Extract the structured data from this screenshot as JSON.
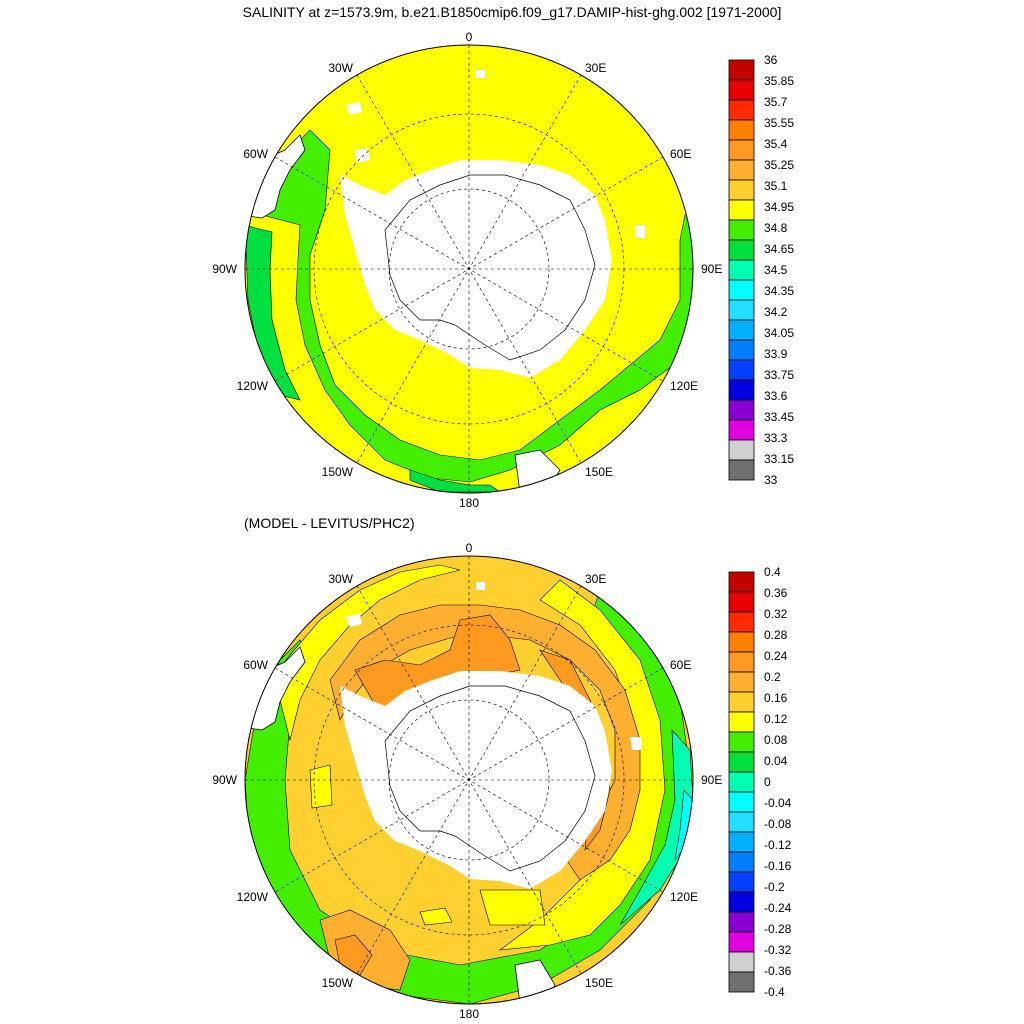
{
  "top_title": "SALINITY at z=1573.9m, b.e21.B1850cmip6.f09_g17.DAMIP-hist-ghg.002 [1971-2000]",
  "bottom_title": "(MODEL - LEVITUS/PHC2)",
  "longitude_labels": {
    "top": "0",
    "bottom": "180",
    "left": "90W",
    "right": "90E",
    "ul1": "30W",
    "ul2": "60W",
    "ur1": "30E",
    "ur2": "60E",
    "ll1": "120W",
    "ll2": "150W",
    "lr1": "120E",
    "lr2": "150E"
  },
  "colors": {
    "land": "#ffffff",
    "coast": "#000000",
    "grid": "#000000"
  },
  "maps": [
    {
      "name": "salinity",
      "colorbar": {
        "labels": [
          "36",
          "35.85",
          "35.7",
          "35.55",
          "35.4",
          "35.25",
          "35.1",
          "34.95",
          "34.8",
          "34.65",
          "34.5",
          "34.35",
          "34.2",
          "34.05",
          "33.9",
          "33.75",
          "33.6",
          "33.45",
          "33.3",
          "33.15",
          "33"
        ],
        "colors": [
          "#c40000",
          "#e80000",
          "#ff2a00",
          "#ff8000",
          "#ff9a20",
          "#ffb030",
          "#ffd030",
          "#ffff00",
          "#44ee00",
          "#00e040",
          "#00ffb0",
          "#00ffff",
          "#20dfff",
          "#00b0ff",
          "#0080ff",
          "#0040ff",
          "#0000e0",
          "#8800d0",
          "#e000e0",
          "#d0d0d0",
          "#707070"
        ]
      }
    },
    {
      "name": "difference",
      "colorbar": {
        "labels": [
          "0.4",
          "0.36",
          "0.32",
          "0.28",
          "0.24",
          "0.2",
          "0.16",
          "0.12",
          "0.08",
          "0.04",
          "0",
          "-0.04",
          "-0.08",
          "-0.12",
          "-0.16",
          "-0.2",
          "-0.24",
          "-0.28",
          "-0.32",
          "-0.36",
          "-0.4"
        ],
        "colors": [
          "#c40000",
          "#e80000",
          "#ff2a00",
          "#ff8000",
          "#ff9a20",
          "#ffb030",
          "#ffd030",
          "#ffff00",
          "#44ee00",
          "#00e040",
          "#00ffb0",
          "#00ffff",
          "#20dfff",
          "#00b0ff",
          "#0080ff",
          "#0040ff",
          "#0000e0",
          "#8800d0",
          "#e000e0",
          "#d0d0d0",
          "#707070"
        ]
      }
    }
  ]
}
